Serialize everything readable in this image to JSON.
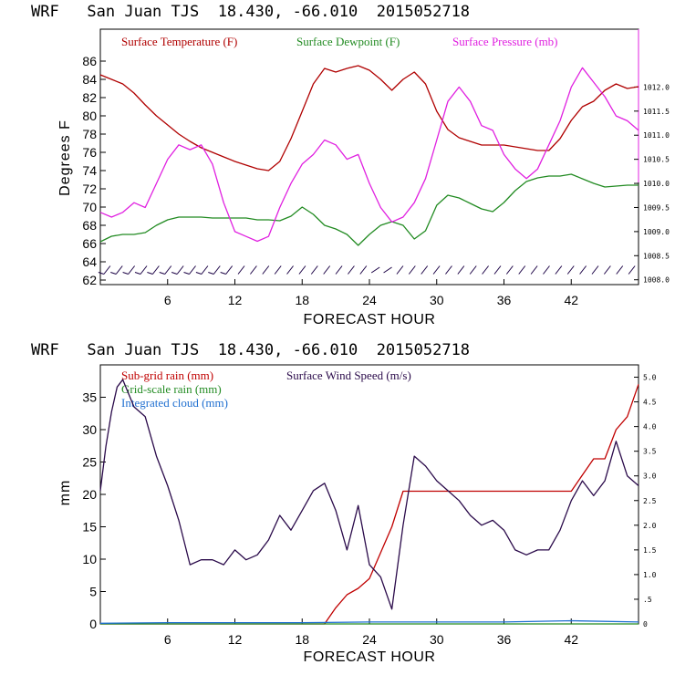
{
  "colors": {
    "temperature": "#b00000",
    "dewpoint": "#228b22",
    "pressure": "#e020e0",
    "subgrid_rain": "#c00000",
    "gridscale_rain": "#228b22",
    "cloud": "#1f6fd0",
    "wind_speed": "#2a0a4a",
    "wind_barb": "#1a0044",
    "frame": "#000000",
    "right_axis_top": "#e020e0"
  },
  "chart_data": [
    {
      "type": "line",
      "title": "WRF   San Juan TJS  18.430, -66.010  2015052718",
      "xlabel": "FORECAST HOUR",
      "ylabel": "Degrees F",
      "xlim": [
        0,
        48
      ],
      "ylim": [
        61.5,
        89.5
      ],
      "y2lim": [
        1007.9,
        1013.2
      ],
      "x_ticks": [
        6,
        12,
        18,
        24,
        30,
        36,
        42
      ],
      "x_tick_labels": [
        "6",
        "12",
        "18",
        "24",
        "30",
        "36",
        "42"
      ],
      "y_ticks": [
        62,
        64,
        66,
        68,
        70,
        72,
        74,
        76,
        78,
        80,
        82,
        84,
        86
      ],
      "y_tick_labels": [
        "62",
        "64",
        "66",
        "68",
        "70",
        "72",
        "74",
        "76",
        "78",
        "80",
        "82",
        "84",
        "86"
      ],
      "y2_ticks": [
        1008.0,
        1008.5,
        1009.0,
        1009.5,
        1010.0,
        1010.5,
        1011.0,
        1011.5,
        1012.0
      ],
      "y2_tick_labels": [
        "1008.0",
        "1008.5",
        "1009.0",
        "1009.5",
        "1010.0",
        "1010.5",
        "1011.0",
        "1011.5",
        "1012.0"
      ],
      "legend": [
        "Surface Temperature (F)",
        "Surface Dewpoint (F)",
        "Surface Pressure (mb)"
      ],
      "legend_position": "top",
      "series": [
        {
          "name": "Surface Temperature (F)",
          "axis": "left",
          "x": [
            0,
            1,
            2,
            3,
            4,
            5,
            6,
            7,
            8,
            9,
            10,
            11,
            12,
            13,
            14,
            15,
            16,
            17,
            18,
            19,
            20,
            21,
            22,
            23,
            24,
            25,
            26,
            27,
            28,
            29,
            30,
            31,
            32,
            33,
            34,
            35,
            36,
            37,
            38,
            39,
            40,
            41,
            42,
            43,
            44,
            45,
            46,
            47,
            48
          ],
          "values": [
            84.5,
            84.0,
            83.5,
            82.5,
            81.2,
            80.0,
            79.0,
            78.0,
            77.2,
            76.5,
            76.0,
            75.5,
            75.0,
            74.6,
            74.2,
            74.0,
            75.0,
            77.5,
            80.5,
            83.5,
            85.2,
            84.8,
            85.2,
            85.5,
            85.0,
            84.0,
            82.8,
            84.0,
            84.8,
            83.5,
            80.5,
            78.5,
            77.6,
            77.2,
            76.8,
            76.8,
            76.8,
            76.6,
            76.4,
            76.2,
            76.2,
            77.5,
            79.5,
            81.0,
            81.6,
            82.8,
            83.5,
            83.0,
            83.2
          ]
        },
        {
          "name": "Surface Dewpoint (F)",
          "axis": "left",
          "x": [
            0,
            1,
            2,
            3,
            4,
            5,
            6,
            7,
            8,
            9,
            10,
            11,
            12,
            13,
            14,
            15,
            16,
            17,
            18,
            19,
            20,
            21,
            22,
            23,
            24,
            25,
            26,
            27,
            28,
            29,
            30,
            31,
            32,
            33,
            34,
            35,
            36,
            37,
            38,
            39,
            40,
            41,
            42,
            43,
            44,
            45,
            46,
            47,
            48
          ],
          "values": [
            66.2,
            66.8,
            67.0,
            67.0,
            67.2,
            68.0,
            68.6,
            68.9,
            68.9,
            68.9,
            68.8,
            68.8,
            68.8,
            68.8,
            68.6,
            68.6,
            68.5,
            69.0,
            70.0,
            69.2,
            68.0,
            67.6,
            67.0,
            65.8,
            67.0,
            68.0,
            68.4,
            68.0,
            66.5,
            67.4,
            70.2,
            71.3,
            71.0,
            70.4,
            69.8,
            69.5,
            70.5,
            71.8,
            72.8,
            73.2,
            73.4,
            73.4,
            73.6,
            73.1,
            72.6,
            72.2,
            72.3,
            72.4,
            72.4
          ]
        },
        {
          "name": "Surface Pressure (mb)",
          "axis": "right",
          "x": [
            0,
            1,
            2,
            3,
            4,
            5,
            6,
            7,
            8,
            9,
            10,
            11,
            12,
            13,
            14,
            15,
            16,
            17,
            18,
            19,
            20,
            21,
            22,
            23,
            24,
            25,
            26,
            27,
            28,
            29,
            30,
            31,
            32,
            33,
            34,
            35,
            36,
            37,
            38,
            39,
            40,
            41,
            42,
            43,
            44,
            45,
            46,
            47,
            48
          ],
          "values": [
            1009.4,
            1009.3,
            1009.4,
            1009.6,
            1009.5,
            1010.0,
            1010.5,
            1010.8,
            1010.7,
            1010.8,
            1010.4,
            1009.6,
            1009.0,
            1008.9,
            1008.8,
            1008.9,
            1009.5,
            1010.0,
            1010.4,
            1010.6,
            1010.9,
            1010.8,
            1010.5,
            1010.6,
            1010.0,
            1009.5,
            1009.2,
            1009.3,
            1009.6,
            1010.1,
            1010.9,
            1011.7,
            1012.0,
            1011.7,
            1011.2,
            1011.1,
            1010.6,
            1010.3,
            1010.1,
            1010.3,
            1010.8,
            1011.3,
            1012.0,
            1012.4,
            1012.1,
            1011.8,
            1011.4,
            1011.3,
            1011.1
          ]
        }
      ],
      "wind_barbs": "surface wind barbs along bottom of plot"
    },
    {
      "type": "line",
      "title": "WRF   San Juan TJS  18.430, -66.010  2015052718",
      "xlabel": "FORECAST HOUR",
      "ylabel": "mm",
      "xlim": [
        0,
        48
      ],
      "ylim": [
        0,
        40
      ],
      "y2lim": [
        0,
        5.25
      ],
      "x_ticks": [
        6,
        12,
        18,
        24,
        30,
        36,
        42
      ],
      "x_tick_labels": [
        "6",
        "12",
        "18",
        "24",
        "30",
        "36",
        "42"
      ],
      "y_ticks": [
        0,
        5,
        10,
        15,
        20,
        25,
        30,
        35
      ],
      "y_tick_labels": [
        "0",
        "5",
        "10",
        "15",
        "20",
        "25",
        "30",
        "35"
      ],
      "y2_ticks": [
        0,
        0.5,
        1.0,
        1.5,
        2.0,
        2.5,
        3.0,
        3.5,
        4.0,
        4.5,
        5.0
      ],
      "y2_tick_labels": [
        "0",
        ".5",
        "1.0",
        "1.5",
        "2.0",
        "2.5",
        "3.0",
        "3.5",
        "4.0",
        "4.5",
        "5.0"
      ],
      "legend": [
        "Sub-grid rain (mm)",
        "Grid-scale rain (mm)",
        "Integrated cloud (mm)",
        "Surface Wind Speed (m/s)"
      ],
      "legend_position": "top-left",
      "series": [
        {
          "name": "Sub-grid rain (mm)",
          "axis": "left",
          "x": [
            0,
            20,
            21,
            22,
            23,
            24,
            25,
            26,
            27,
            28,
            30,
            32,
            34,
            36,
            38,
            40,
            41,
            42,
            43,
            44,
            45,
            46,
            47,
            48
          ],
          "values": [
            0,
            0,
            2.5,
            4.5,
            5.5,
            7.0,
            11.0,
            15.0,
            20.5,
            20.5,
            20.5,
            20.5,
            20.5,
            20.5,
            20.5,
            20.5,
            20.5,
            20.5,
            23.0,
            25.5,
            25.5,
            30.0,
            32.0,
            37.0
          ]
        },
        {
          "name": "Grid-scale rain (mm)",
          "axis": "left",
          "x": [
            0,
            48
          ],
          "values": [
            0,
            0
          ]
        },
        {
          "name": "Integrated cloud (mm)",
          "axis": "left",
          "x": [
            0,
            6,
            12,
            18,
            24,
            30,
            36,
            42,
            48
          ],
          "values": [
            0.1,
            0.2,
            0.2,
            0.2,
            0.3,
            0.3,
            0.3,
            0.5,
            0.3
          ]
        },
        {
          "name": "Surface Wind Speed (m/s)",
          "axis": "right",
          "x": [
            0,
            0.5,
            1,
            1.5,
            2,
            3,
            4,
            5,
            6,
            7,
            8,
            9,
            10,
            11,
            12,
            13,
            14,
            15,
            16,
            17,
            18,
            19,
            20,
            21,
            22,
            23,
            24,
            25,
            26,
            27,
            28,
            29,
            30,
            31,
            32,
            33,
            34,
            35,
            36,
            37,
            38,
            39,
            40,
            41,
            42,
            43,
            44,
            45,
            46,
            47,
            48
          ],
          "values": [
            2.7,
            3.6,
            4.3,
            4.8,
            4.95,
            4.4,
            4.2,
            3.4,
            2.8,
            2.1,
            1.2,
            1.3,
            1.3,
            1.2,
            1.5,
            1.3,
            1.4,
            1.7,
            2.2,
            1.9,
            2.3,
            2.7,
            2.85,
            2.3,
            1.5,
            2.4,
            1.2,
            0.95,
            0.3,
            2.0,
            3.4,
            3.2,
            2.9,
            2.7,
            2.5,
            2.2,
            2.0,
            2.1,
            1.9,
            1.5,
            1.4,
            1.5,
            1.5,
            1.9,
            2.5,
            2.9,
            2.6,
            2.9,
            3.7,
            3.0,
            2.8
          ]
        }
      ]
    }
  ]
}
